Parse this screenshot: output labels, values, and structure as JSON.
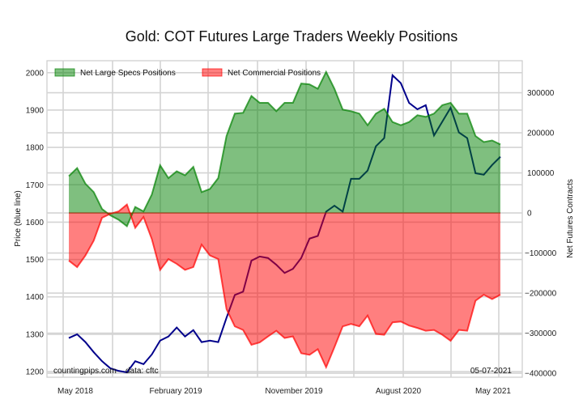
{
  "chart_data": {
    "type": "area",
    "title": "Gold: COT Futures Large Traders Weekly Positions",
    "ylabel_left": "Price (blue line)",
    "ylabel_right": "Net Futures Contracts",
    "x_tick_labels": [
      "May 2018",
      "February 2019",
      "November 2019",
      "August 2020",
      "May 2021"
    ],
    "y_left_ticks": [
      1200,
      1300,
      1400,
      1500,
      1600,
      1700,
      1800,
      1900,
      2000
    ],
    "y_right_ticks": [
      -400000,
      -300000,
      -200000,
      -100000,
      0,
      100000,
      200000,
      300000
    ],
    "ylim_left": [
      1185,
      2032
    ],
    "ylim_right": [
      -410000,
      380000
    ],
    "grid": true,
    "legend_placement": "top-left",
    "source_note": "countingpips.com",
    "data_note": "data: cftc",
    "date_note": "05-07-2021",
    "x_start": "2018-05-08",
    "x_step_days": 21,
    "series": [
      {
        "name": "Net Large Specs Positions",
        "axis": "right",
        "color": "#008000",
        "values": [
          92000,
          112000,
          73000,
          52000,
          10000,
          -6000,
          -17000,
          -33000,
          15000,
          4000,
          46000,
          119000,
          87000,
          104000,
          94000,
          115000,
          52000,
          60000,
          87000,
          192000,
          248000,
          250000,
          292000,
          275000,
          275000,
          254000,
          275000,
          275000,
          323000,
          321000,
          310000,
          352000,
          310000,
          258000,
          254000,
          248000,
          219000,
          248000,
          260000,
          227000,
          219000,
          227000,
          244000,
          240000,
          248000,
          269000,
          275000,
          248000,
          248000,
          192000,
          177000,
          181000,
          171000
        ]
      },
      {
        "name": "Net Commercial Positions",
        "axis": "right",
        "color": "#ff0000",
        "values": [
          -119000,
          -135000,
          -106000,
          -69000,
          -12000,
          -2000,
          4000,
          21000,
          -37000,
          -10000,
          -65000,
          -142000,
          -115000,
          -127000,
          -142000,
          -135000,
          -79000,
          -106000,
          -115000,
          -240000,
          -283000,
          -292000,
          -329000,
          -323000,
          -308000,
          -294000,
          -312000,
          -308000,
          -350000,
          -354000,
          -340000,
          -385000,
          -335000,
          -283000,
          -277000,
          -283000,
          -256000,
          -302000,
          -304000,
          -273000,
          -271000,
          -281000,
          -287000,
          -294000,
          -292000,
          -304000,
          -319000,
          -292000,
          -294000,
          -219000,
          -204000,
          -215000,
          -204000
        ]
      },
      {
        "axis": "left",
        "color": "#00008b",
        "values": [
          1290,
          1300,
          1279,
          1252,
          1228,
          1209,
          1202,
          1198,
          1228,
          1220,
          1246,
          1283,
          1294,
          1318,
          1294,
          1311,
          1279,
          1283,
          1279,
          1344,
          1405,
          1414,
          1497,
          1508,
          1504,
          1486,
          1464,
          1475,
          1504,
          1556,
          1563,
          1628,
          1644,
          1628,
          1716,
          1716,
          1738,
          1803,
          1825,
          1993,
          1972,
          1919,
          1902,
          1913,
          1832,
          1869,
          1906,
          1840,
          1825,
          1731,
          1727,
          1753,
          1775
        ]
      }
    ]
  }
}
